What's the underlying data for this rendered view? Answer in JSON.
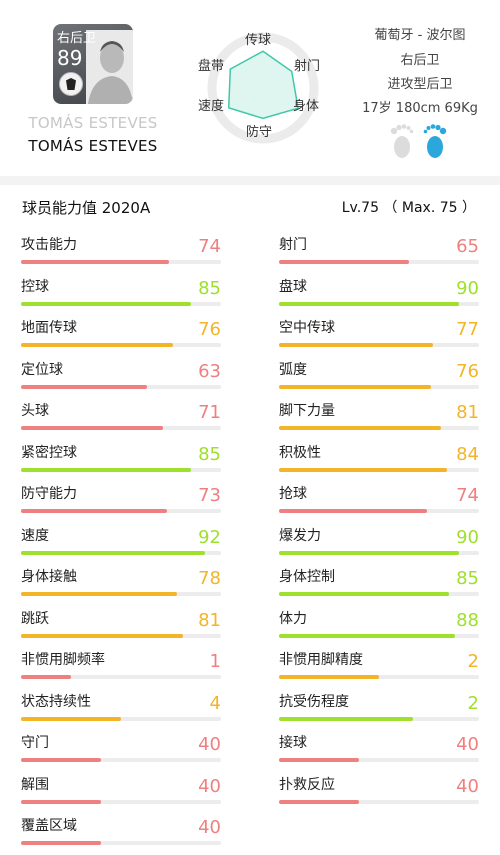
{
  "player": {
    "position": "右后卫",
    "overall": "89",
    "name_ghost": "TOMÁS ESTEVES",
    "name": "TOMÁS ESTEVES"
  },
  "radar": {
    "labels": [
      "传球",
      "射门",
      "身体",
      "防守",
      "速度",
      "盘带"
    ],
    "values": [
      0.8,
      0.72,
      0.88,
      0.66,
      0.86,
      0.82
    ],
    "color": "#3fc8a8"
  },
  "info": {
    "club": "葡萄牙 - 波尔图",
    "position": "右后卫",
    "playstyle": "进攻型后卫",
    "physical": "17岁 180cm 69Kg",
    "left_foot_color": "#dcdcdc",
    "right_foot_color": "#2ba7dc"
  },
  "section": {
    "title": "球员能力值 2020A",
    "level": "Lv.75 （ Max. 75 ）"
  },
  "colors": {
    "red": "#ef8080",
    "orange": "#f3b428",
    "green": "#9ee02c"
  },
  "stats_left": [
    {
      "label": "攻击能力",
      "value": "74",
      "level": 0.74,
      "color": "red"
    },
    {
      "label": "控球",
      "value": "85",
      "level": 0.85,
      "color": "green"
    },
    {
      "label": "地面传球",
      "value": "76",
      "level": 0.76,
      "color": "orange"
    },
    {
      "label": "定位球",
      "value": "63",
      "level": 0.63,
      "color": "red"
    },
    {
      "label": "头球",
      "value": "71",
      "level": 0.71,
      "color": "red"
    },
    {
      "label": "紧密控球",
      "value": "85",
      "level": 0.85,
      "color": "green"
    },
    {
      "label": "防守能力",
      "value": "73",
      "level": 0.73,
      "color": "red"
    },
    {
      "label": "速度",
      "value": "92",
      "level": 0.92,
      "color": "green"
    },
    {
      "label": "身体接触",
      "value": "78",
      "level": 0.78,
      "color": "orange"
    },
    {
      "label": "跳跃",
      "value": "81",
      "level": 0.81,
      "color": "orange"
    },
    {
      "label": "非惯用脚频率",
      "value": "1",
      "level": 0.25,
      "color": "red"
    },
    {
      "label": "状态持续性",
      "value": "4",
      "level": 0.5,
      "color": "orange"
    },
    {
      "label": "守门",
      "value": "40",
      "level": 0.4,
      "color": "red"
    },
    {
      "label": "解围",
      "value": "40",
      "level": 0.4,
      "color": "red"
    },
    {
      "label": "覆盖区域",
      "value": "40",
      "level": 0.4,
      "color": "red"
    }
  ],
  "stats_right": [
    {
      "label": "射门",
      "value": "65",
      "level": 0.65,
      "color": "red"
    },
    {
      "label": "盘球",
      "value": "90",
      "level": 0.9,
      "color": "green"
    },
    {
      "label": "空中传球",
      "value": "77",
      "level": 0.77,
      "color": "orange"
    },
    {
      "label": "弧度",
      "value": "76",
      "level": 0.76,
      "color": "orange"
    },
    {
      "label": "脚下力量",
      "value": "81",
      "level": 0.81,
      "color": "orange"
    },
    {
      "label": "积极性",
      "value": "84",
      "level": 0.84,
      "color": "orange"
    },
    {
      "label": "抢球",
      "value": "74",
      "level": 0.74,
      "color": "red"
    },
    {
      "label": "爆发力",
      "value": "90",
      "level": 0.9,
      "color": "green"
    },
    {
      "label": "身体控制",
      "value": "85",
      "level": 0.85,
      "color": "green"
    },
    {
      "label": "体力",
      "value": "88",
      "level": 0.88,
      "color": "green"
    },
    {
      "label": "非惯用脚精度",
      "value": "2",
      "level": 0.5,
      "color": "orange"
    },
    {
      "label": "抗受伤程度",
      "value": "2",
      "level": 0.67,
      "color": "green"
    },
    {
      "label": "接球",
      "value": "40",
      "level": 0.4,
      "color": "red"
    },
    {
      "label": "扑救反应",
      "value": "40",
      "level": 0.4,
      "color": "red"
    }
  ]
}
